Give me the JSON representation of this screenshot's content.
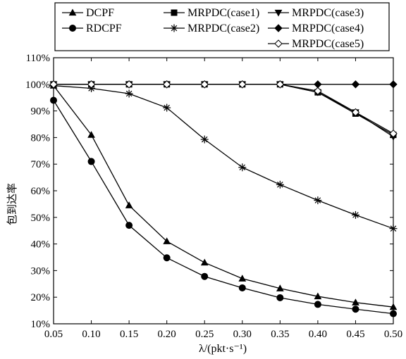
{
  "chart_data": {
    "type": "line",
    "xlabel": "λ/(pkt·s⁻¹)",
    "ylabel": "包到达率",
    "xlim": [
      0.05,
      0.5
    ],
    "ylim": [
      10,
      110
    ],
    "x": [
      0.05,
      0.1,
      0.15,
      0.2,
      0.25,
      0.3,
      0.35,
      0.4,
      0.45,
      0.5
    ],
    "x_tick_labels": [
      "0.05",
      "0.10",
      "0.15",
      "0.20",
      "0.25",
      "0.30",
      "0.35",
      "0.40",
      "0.45",
      "0.50"
    ],
    "y_tick_labels": [
      "10%",
      "20%",
      "30%",
      "40%",
      "50%",
      "60%",
      "70%",
      "80%",
      "90%",
      "100%",
      "110%"
    ],
    "grid": false,
    "legend_position": "top",
    "series": [
      {
        "name": "DCPF",
        "marker": "triangle-filled",
        "values": [
          99.5,
          81,
          54.5,
          41,
          33,
          27,
          23.3,
          20.3,
          18,
          16.3
        ]
      },
      {
        "name": "RDCPF",
        "marker": "circle-filled",
        "values": [
          94,
          71,
          47,
          34.8,
          27.8,
          23.5,
          19.8,
          17.3,
          15.5,
          13.8
        ]
      },
      {
        "name": "MRPDC(case1)",
        "marker": "square-filled",
        "values": [
          100,
          100,
          100,
          100,
          100,
          100,
          100,
          97,
          89,
          81
        ]
      },
      {
        "name": "MRPDC(case2)",
        "marker": "asterisk",
        "values": [
          99.5,
          98.5,
          96.5,
          91.2,
          79.3,
          68.8,
          62.3,
          56.4,
          50.9,
          45.8
        ]
      },
      {
        "name": "MRPDC(case3)",
        "marker": "triangle-down-filled",
        "values": [
          100,
          100,
          100,
          100,
          100,
          100,
          100,
          97,
          89.5,
          80.3
        ]
      },
      {
        "name": "MRPDC(case4)",
        "marker": "diamond-filled",
        "values": [
          100,
          100,
          100,
          100,
          100,
          100,
          100,
          100,
          100,
          100
        ]
      },
      {
        "name": "MRPDC(case5)",
        "marker": "diamond-open",
        "values": [
          100,
          100,
          100,
          100,
          100,
          100,
          100,
          97.5,
          89.5,
          81.5
        ]
      }
    ]
  }
}
